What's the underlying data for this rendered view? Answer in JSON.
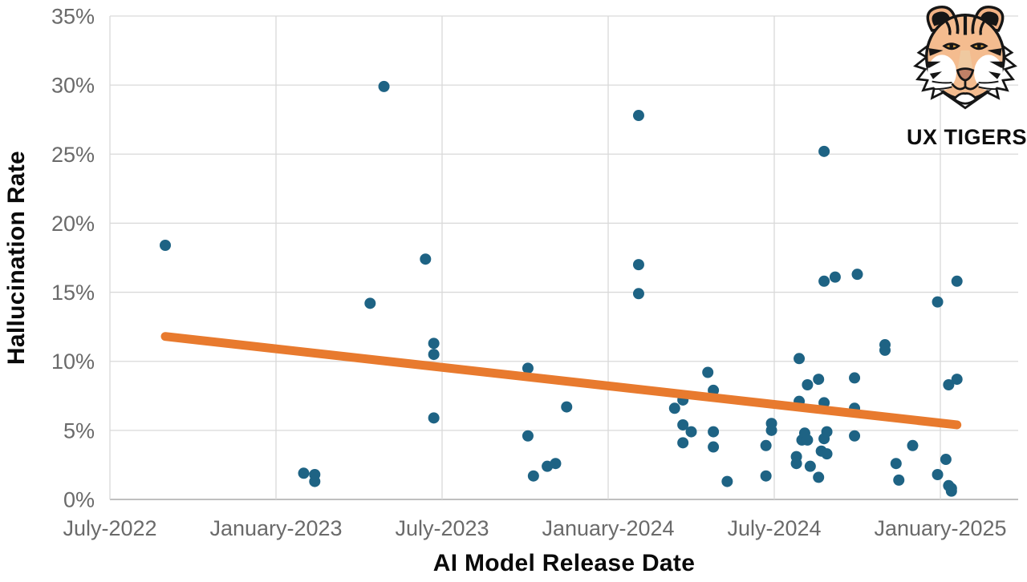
{
  "branding": {
    "logo_label": "UX TIGERS",
    "logo_icon": "tiger-face-icon"
  },
  "chart_data": {
    "type": "scatter",
    "title": "",
    "xlabel": "AI Model Release Date",
    "ylabel": "Hallucination Rate",
    "x_tick_labels": [
      "July-2022",
      "January-2023",
      "July-2023",
      "January-2024",
      "July-2024",
      "January-2025"
    ],
    "x_tick_months": [
      0,
      6,
      12,
      18,
      24,
      30
    ],
    "x_unit": "months after July-2022",
    "y_ticks": [
      "0%",
      "5%",
      "10%",
      "15%",
      "20%",
      "25%",
      "30%",
      "35%"
    ],
    "ylim": [
      0,
      35
    ],
    "xlim_months": [
      0,
      32.8
    ],
    "grid": true,
    "legend": "none",
    "colors": {
      "point": "#1E6384",
      "trend": "#E87A2E",
      "gridline": "#D9D9D9",
      "axis_line": "#BFBFBF",
      "tick_label": "#6A6A6A",
      "title": "#0A0A0A"
    },
    "points": [
      [
        2.0,
        18.4
      ],
      [
        7.0,
        1.9
      ],
      [
        7.4,
        1.8
      ],
      [
        7.4,
        1.3
      ],
      [
        9.4,
        14.2
      ],
      [
        9.9,
        29.9
      ],
      [
        11.4,
        17.4
      ],
      [
        11.7,
        11.3
      ],
      [
        11.7,
        10.5
      ],
      [
        11.7,
        5.9
      ],
      [
        15.1,
        9.5
      ],
      [
        15.1,
        4.6
      ],
      [
        15.3,
        1.7
      ],
      [
        15.8,
        2.4
      ],
      [
        16.1,
        2.6
      ],
      [
        16.5,
        6.7
      ],
      [
        19.1,
        27.8
      ],
      [
        19.1,
        17.0
      ],
      [
        19.1,
        14.9
      ],
      [
        20.4,
        6.6
      ],
      [
        20.7,
        7.2
      ],
      [
        20.7,
        5.4
      ],
      [
        20.7,
        4.1
      ],
      [
        21.0,
        4.9
      ],
      [
        21.6,
        9.2
      ],
      [
        21.8,
        7.9
      ],
      [
        21.8,
        4.9
      ],
      [
        21.8,
        3.8
      ],
      [
        22.3,
        1.3
      ],
      [
        23.7,
        3.9
      ],
      [
        23.7,
        1.7
      ],
      [
        23.9,
        5.5
      ],
      [
        23.9,
        5.0
      ],
      [
        24.8,
        3.1
      ],
      [
        24.8,
        2.6
      ],
      [
        24.9,
        10.2
      ],
      [
        24.9,
        7.1
      ],
      [
        25.0,
        4.3
      ],
      [
        25.1,
        4.8
      ],
      [
        25.2,
        4.3
      ],
      [
        25.2,
        8.3
      ],
      [
        25.3,
        2.4
      ],
      [
        25.6,
        8.7
      ],
      [
        25.6,
        1.6
      ],
      [
        25.7,
        3.5
      ],
      [
        25.8,
        25.2
      ],
      [
        25.8,
        15.8
      ],
      [
        25.8,
        7.0
      ],
      [
        25.8,
        4.4
      ],
      [
        25.9,
        4.9
      ],
      [
        25.9,
        3.3
      ],
      [
        26.2,
        16.1
      ],
      [
        26.9,
        8.8
      ],
      [
        26.9,
        6.6
      ],
      [
        26.9,
        4.6
      ],
      [
        27.0,
        16.3
      ],
      [
        28.0,
        11.2
      ],
      [
        28.0,
        10.8
      ],
      [
        28.4,
        2.6
      ],
      [
        28.5,
        1.4
      ],
      [
        29.0,
        3.9
      ],
      [
        29.9,
        14.3
      ],
      [
        29.9,
        1.8
      ],
      [
        30.2,
        2.9
      ],
      [
        30.3,
        8.3
      ],
      [
        30.3,
        1.0
      ],
      [
        30.4,
        0.8
      ],
      [
        30.4,
        0.6
      ],
      [
        30.6,
        15.8
      ],
      [
        30.6,
        8.7
      ]
    ],
    "trend": {
      "type": "linear",
      "x1": 2.0,
      "y1": 11.8,
      "x2": 30.6,
      "y2": 5.4
    }
  }
}
